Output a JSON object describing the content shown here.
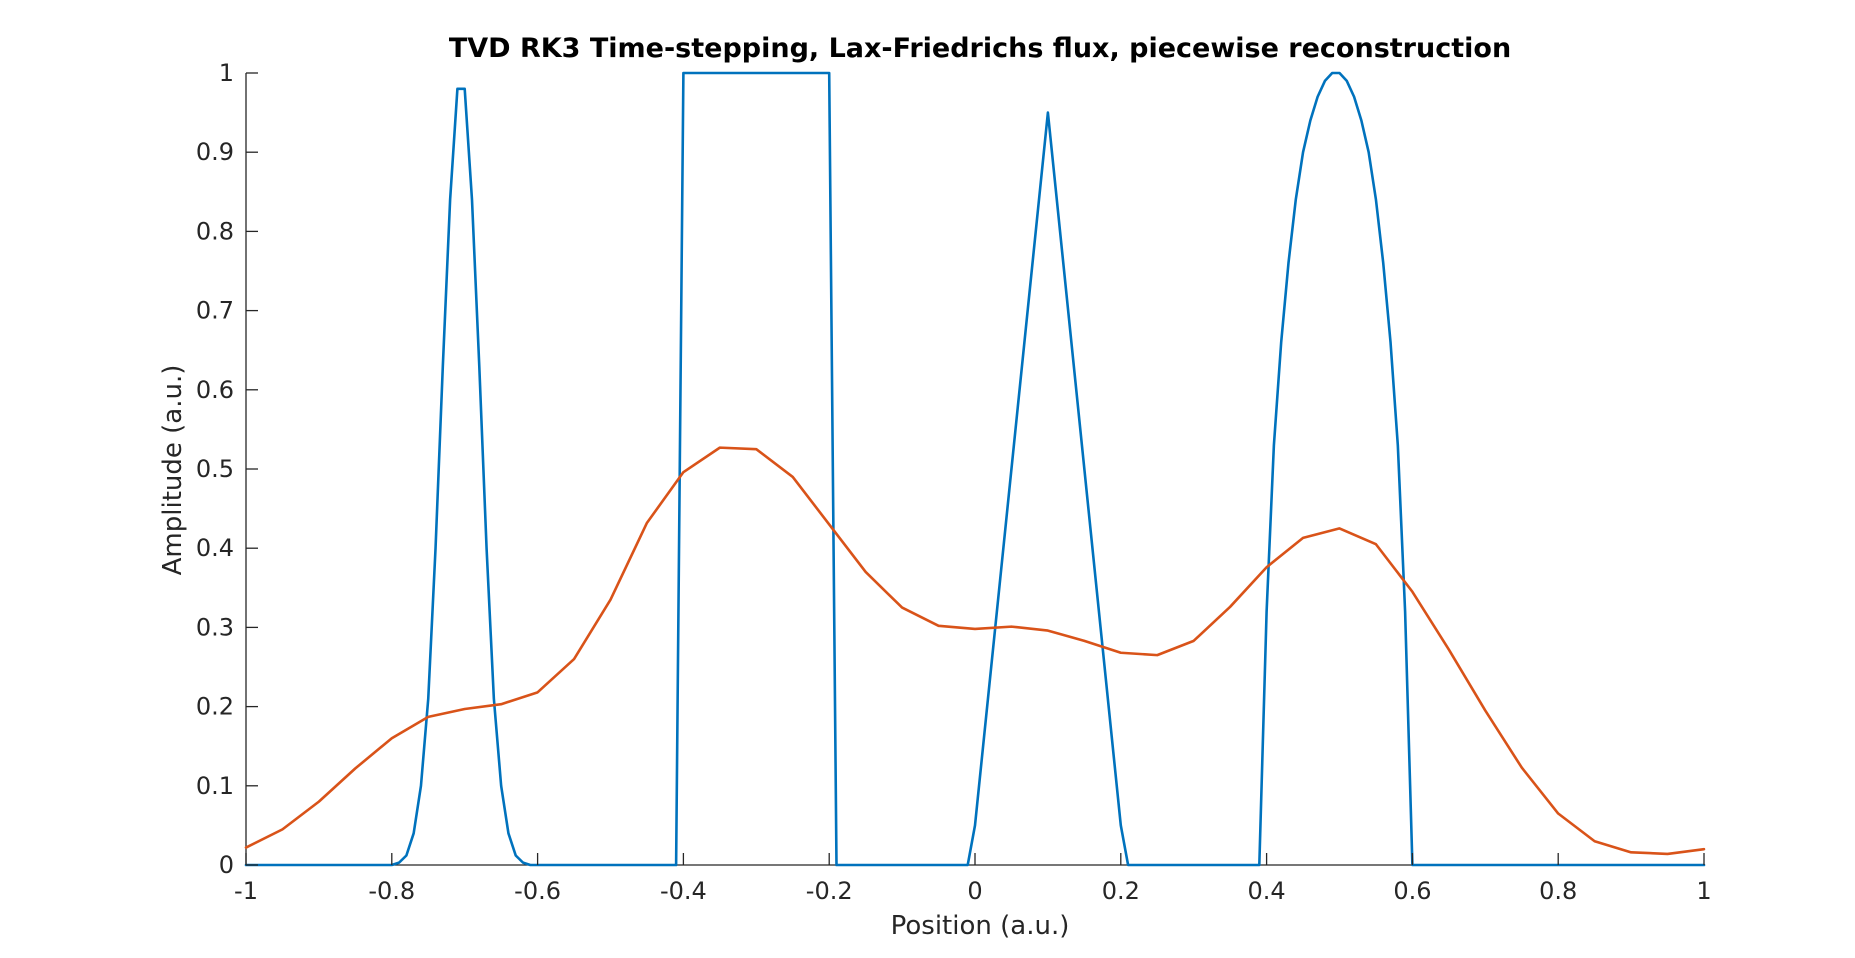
{
  "chart_data": {
    "type": "line",
    "title": "TVD RK3 Time-stepping, Lax-Friedrichs flux, piecewise reconstruction",
    "xlabel": "Position (a.u.)",
    "ylabel": "Amplitude (a.u.)",
    "xlim": [
      -1,
      1
    ],
    "ylim": [
      0,
      1
    ],
    "xticks": [
      -1,
      -0.8,
      -0.6,
      -0.4,
      -0.2,
      0,
      0.2,
      0.4,
      0.6,
      0.8,
      1
    ],
    "xtick_labels": [
      "-1",
      "-0.8",
      "-0.6",
      "-0.4",
      "-0.2",
      "0",
      "0.2",
      "0.4",
      "0.6",
      "0.8",
      "1"
    ],
    "yticks": [
      0,
      0.1,
      0.2,
      0.3,
      0.4,
      0.5,
      0.6,
      0.7,
      0.8,
      0.9,
      1
    ],
    "ytick_labels": [
      "0",
      "0.1",
      "0.2",
      "0.3",
      "0.4",
      "0.5",
      "0.6",
      "0.7",
      "0.8",
      "0.9",
      "1"
    ],
    "grid": false,
    "legend": "none",
    "series": [
      {
        "color": "#0072BD",
        "x": [
          -1,
          -0.8,
          -0.79,
          -0.78,
          -0.77,
          -0.76,
          -0.75,
          -0.74,
          -0.73,
          -0.72,
          -0.71,
          -0.7,
          -0.69,
          -0.68,
          -0.67,
          -0.66,
          -0.65,
          -0.64,
          -0.63,
          -0.62,
          -0.61,
          -0.6,
          -0.41,
          -0.4,
          -0.39,
          -0.2,
          -0.19,
          -0.18,
          -0.01,
          0.0,
          0.1,
          0.2,
          0.21,
          0.39,
          0.4,
          0.41,
          0.42,
          0.43,
          0.44,
          0.45,
          0.46,
          0.47,
          0.48,
          0.49,
          0.5,
          0.51,
          0.52,
          0.53,
          0.54,
          0.55,
          0.56,
          0.57,
          0.58,
          0.59,
          0.6,
          0.61,
          1
        ],
        "y": [
          0,
          0,
          0.003,
          0.012,
          0.04,
          0.1,
          0.21,
          0.4,
          0.63,
          0.84,
          0.98,
          0.98,
          0.84,
          0.63,
          0.4,
          0.21,
          0.1,
          0.04,
          0.012,
          0.003,
          0,
          0,
          0,
          1,
          1,
          1,
          0,
          0,
          0,
          0.05,
          0.95,
          0.05,
          0,
          0,
          0.32,
          0.53,
          0.66,
          0.76,
          0.84,
          0.9,
          0.94,
          0.97,
          0.99,
          1,
          1,
          0.99,
          0.97,
          0.94,
          0.9,
          0.84,
          0.76,
          0.66,
          0.53,
          0.32,
          0,
          0,
          0
        ]
      },
      {
        "color": "#D95319",
        "x": [
          -1,
          -0.95,
          -0.9,
          -0.85,
          -0.8,
          -0.75,
          -0.7,
          -0.65,
          -0.6,
          -0.55,
          -0.5,
          -0.45,
          -0.4,
          -0.35,
          -0.3,
          -0.25,
          -0.2,
          -0.15,
          -0.1,
          -0.05,
          0,
          0.05,
          0.1,
          0.15,
          0.2,
          0.25,
          0.3,
          0.35,
          0.4,
          0.45,
          0.5,
          0.55,
          0.6,
          0.65,
          0.7,
          0.75,
          0.8,
          0.85,
          0.9,
          0.95,
          1
        ],
        "y": [
          0.022,
          0.045,
          0.08,
          0.122,
          0.16,
          0.187,
          0.197,
          0.203,
          0.218,
          0.26,
          0.335,
          0.432,
          0.496,
          0.527,
          0.525,
          0.49,
          0.43,
          0.37,
          0.325,
          0.302,
          0.298,
          0.301,
          0.296,
          0.283,
          0.268,
          0.265,
          0.283,
          0.326,
          0.376,
          0.413,
          0.425,
          0.405,
          0.345,
          0.272,
          0.195,
          0.123,
          0.065,
          0.03,
          0.016,
          0.014,
          0.02
        ]
      }
    ]
  }
}
